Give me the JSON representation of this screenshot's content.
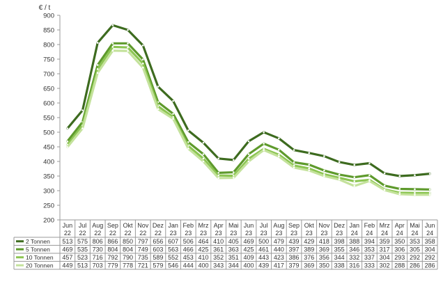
{
  "chart_data": {
    "type": "line",
    "y_unit": "€ / t",
    "categories": [
      [
        "Jun",
        "22"
      ],
      [
        "Jul",
        "22"
      ],
      [
        "Aug",
        "22"
      ],
      [
        "Sep",
        "22"
      ],
      [
        "Okt",
        "22"
      ],
      [
        "Nov",
        "22"
      ],
      [
        "Dez",
        "22"
      ],
      [
        "Jan",
        "23"
      ],
      [
        "Feb",
        "23"
      ],
      [
        "Mrz",
        "23"
      ],
      [
        "Apr",
        "23"
      ],
      [
        "Mai",
        "23"
      ],
      [
        "Jun",
        "23"
      ],
      [
        "Jul",
        "23"
      ],
      [
        "Aug",
        "23"
      ],
      [
        "Sep",
        "23"
      ],
      [
        "Okt",
        "23"
      ],
      [
        "Nov",
        "23"
      ],
      [
        "Dez",
        "23"
      ],
      [
        "Jan",
        "24"
      ],
      [
        "Feb",
        "24"
      ],
      [
        "Mrz",
        "24"
      ],
      [
        "Apr",
        "24"
      ],
      [
        "Mai",
        "24"
      ],
      [
        "Jun",
        "24"
      ]
    ],
    "series": [
      {
        "name": "2 Tonnen",
        "color": "#3d6b1f",
        "values": [
          513,
          575,
          806,
          866,
          850,
          797,
          656,
          607,
          506,
          464,
          410,
          405,
          469,
          500,
          479,
          439,
          429,
          418,
          398,
          388,
          394,
          359,
          350,
          353,
          358
        ]
      },
      {
        "name": "5 Tonnen",
        "color": "#5e9a2c",
        "values": [
          469,
          535,
          730,
          804,
          804,
          749,
          603,
          563,
          466,
          425,
          361,
          363,
          425,
          461,
          440,
          397,
          389,
          369,
          355,
          346,
          353,
          317,
          306,
          305,
          304
        ]
      },
      {
        "name": "10 Tonnen",
        "color": "#8cc552",
        "values": [
          457,
          523,
          716,
          792,
          790,
          735,
          589,
          552,
          453,
          410,
          352,
          351,
          409,
          443,
          423,
          386,
          376,
          356,
          344,
          332,
          337,
          304,
          293,
          292,
          292
        ]
      },
      {
        "name": "20 Tonnen",
        "color": "#c4e29c",
        "values": [
          449,
          513,
          703,
          779,
          778,
          721,
          579,
          546,
          444,
          400,
          343,
          344,
          400,
          439,
          417,
          379,
          369,
          350,
          338,
          316,
          333,
          302,
          288,
          286,
          286
        ]
      }
    ],
    "ylim": [
      200,
      900
    ],
    "yticks": [
      200,
      250,
      300,
      350,
      400,
      450,
      500,
      550,
      600,
      650,
      700,
      750,
      800,
      850,
      900
    ],
    "grid": false,
    "legend": "data table below chart"
  }
}
